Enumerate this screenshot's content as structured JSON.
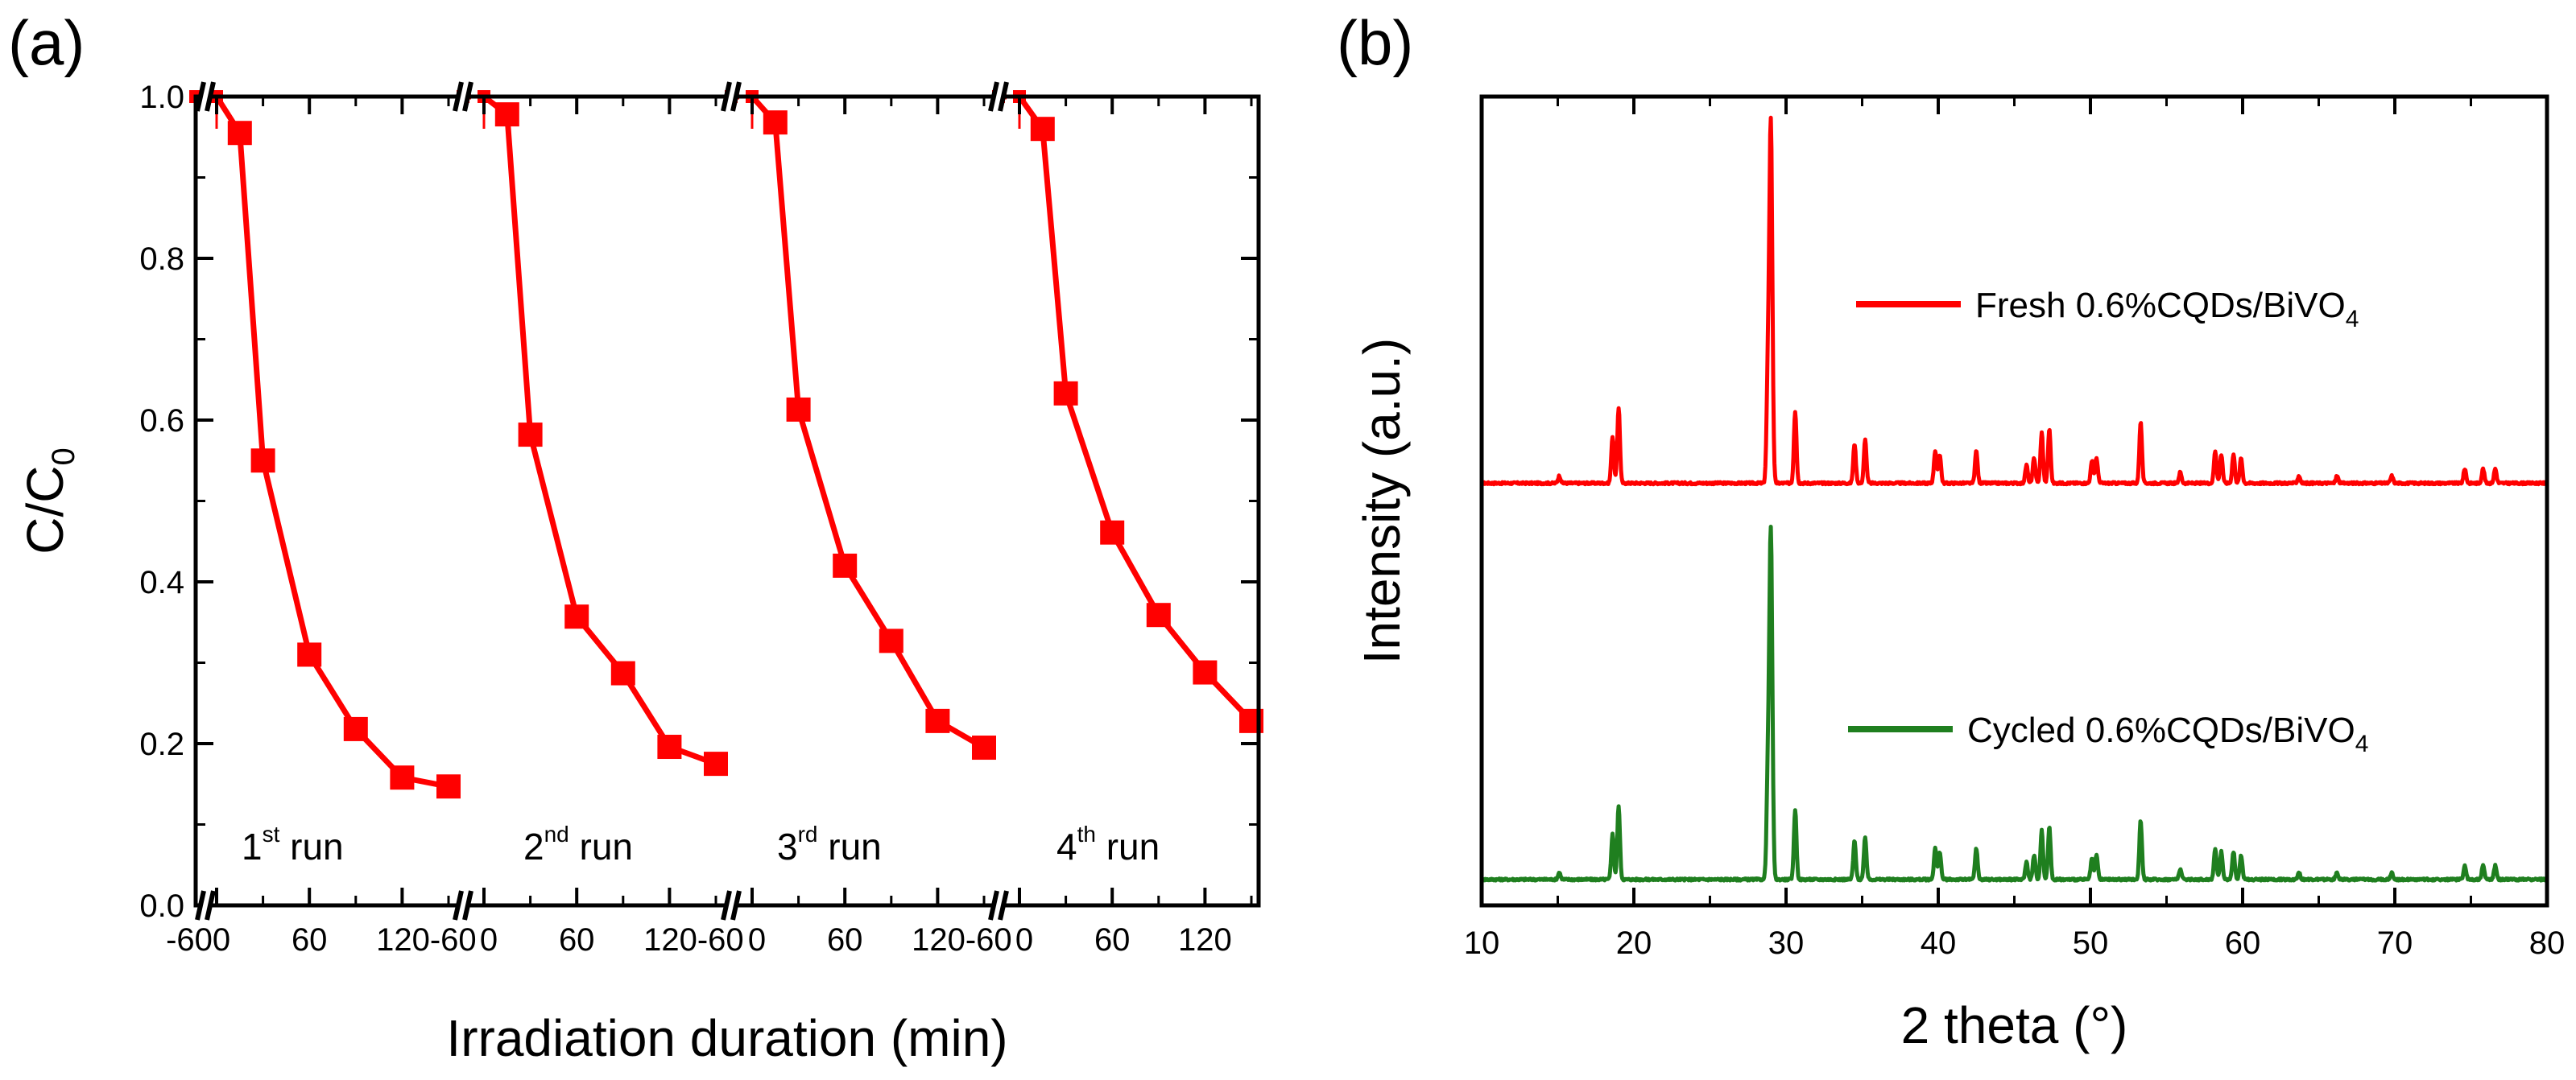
{
  "figure": {
    "panel_a_label": "(a)",
    "panel_b_label": "(b)"
  },
  "chart_data": [
    {
      "type": "line",
      "title": "",
      "xlabel": "Irradiation duration (min)",
      "ylabel_main": "C/C",
      "ylabel_sub": "0",
      "ylim": [
        0,
        1.0
      ],
      "yticks": [
        "0.0",
        "0.2",
        "0.4",
        "0.6",
        "0.8",
        "1.0"
      ],
      "xtick_labels": [
        "-60",
        "0",
        "60",
        "120-60",
        "0",
        "60",
        "120-60",
        "0",
        "60",
        "120-60",
        "0",
        "60",
        "120"
      ],
      "marker": "square",
      "color": "#ff0000",
      "runs": [
        {
          "label_num": "1",
          "label_sup": "st",
          "label_word": " run",
          "x": [
            -60,
            0,
            15,
            30,
            60,
            90,
            120,
            150
          ],
          "y": [
            1.0,
            1.0,
            0.955,
            0.55,
            0.31,
            0.218,
            0.158,
            0.147
          ]
        },
        {
          "label_num": "2",
          "label_sup": "nd",
          "label_word": " run",
          "x": [
            -60,
            0,
            15,
            30,
            60,
            90,
            120,
            150
          ],
          "y": [
            1.0,
            1.0,
            0.978,
            0.582,
            0.357,
            0.287,
            0.196,
            0.175
          ]
        },
        {
          "label_num": "3",
          "label_sup": "rd",
          "label_word": " run",
          "x": [
            -60,
            0,
            15,
            30,
            60,
            90,
            120,
            150
          ],
          "y": [
            1.0,
            1.0,
            0.968,
            0.613,
            0.42,
            0.327,
            0.228,
            0.195
          ]
        },
        {
          "label_num": "4",
          "label_sup": "th",
          "label_word": " run",
          "x": [
            -60,
            0,
            15,
            30,
            60,
            90,
            120,
            150
          ],
          "y": [
            1.0,
            1.0,
            0.96,
            0.633,
            0.461,
            0.359,
            0.288,
            0.228
          ]
        }
      ]
    },
    {
      "type": "line",
      "title": "",
      "xlabel": "2 theta (°)",
      "ylabel": "Intensity (a.u.)",
      "xlim": [
        10,
        80
      ],
      "xticks": [
        10,
        20,
        30,
        40,
        50,
        60,
        70,
        80
      ],
      "yticks_shown": false,
      "peaks": [
        {
          "two_theta": 15.1,
          "rel": 0.02
        },
        {
          "two_theta": 18.6,
          "rel": 0.13
        },
        {
          "two_theta": 19.0,
          "rel": 0.21
        },
        {
          "two_theta": 28.8,
          "rel": 0.27
        },
        {
          "two_theta": 29.0,
          "rel": 1.0
        },
        {
          "two_theta": 30.6,
          "rel": 0.2
        },
        {
          "two_theta": 34.5,
          "rel": 0.11
        },
        {
          "two_theta": 35.2,
          "rel": 0.12
        },
        {
          "two_theta": 39.8,
          "rel": 0.09
        },
        {
          "two_theta": 40.1,
          "rel": 0.08
        },
        {
          "two_theta": 42.5,
          "rel": 0.09
        },
        {
          "two_theta": 45.8,
          "rel": 0.05
        },
        {
          "two_theta": 46.3,
          "rel": 0.07
        },
        {
          "two_theta": 46.8,
          "rel": 0.14
        },
        {
          "two_theta": 47.3,
          "rel": 0.15
        },
        {
          "two_theta": 50.1,
          "rel": 0.06
        },
        {
          "two_theta": 50.4,
          "rel": 0.07
        },
        {
          "two_theta": 53.3,
          "rel": 0.17
        },
        {
          "two_theta": 55.9,
          "rel": 0.03
        },
        {
          "two_theta": 58.2,
          "rel": 0.09
        },
        {
          "two_theta": 58.6,
          "rel": 0.08
        },
        {
          "two_theta": 59.4,
          "rel": 0.08
        },
        {
          "two_theta": 59.9,
          "rel": 0.07
        },
        {
          "two_theta": 63.7,
          "rel": 0.02
        },
        {
          "two_theta": 66.2,
          "rel": 0.02
        },
        {
          "two_theta": 69.8,
          "rel": 0.02
        },
        {
          "two_theta": 74.6,
          "rel": 0.04
        },
        {
          "two_theta": 75.8,
          "rel": 0.04
        },
        {
          "two_theta": 76.6,
          "rel": 0.04
        }
      ],
      "series": [
        {
          "name": "Fresh 0.6%CQDs/BiVO",
          "name_sub": "4",
          "color": "#ff0000",
          "baseline": 0.522,
          "peak_height": 0.445
        },
        {
          "name": "Cycled 0.6%CQDs/BiVO",
          "name_sub": "4",
          "color": "#1f7f1f",
          "baseline": 0.032,
          "peak_height": 0.43
        }
      ]
    }
  ]
}
